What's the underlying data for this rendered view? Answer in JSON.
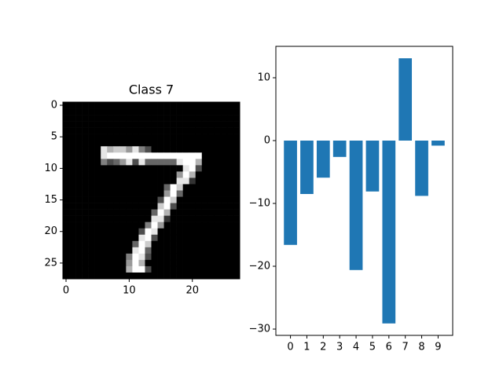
{
  "chart_data": [
    {
      "type": "image",
      "title": "Class 7",
      "cmap": "gray",
      "xlim": [
        -0.5,
        27.5
      ],
      "ylim": [
        27.5,
        -0.5
      ],
      "xticks": [
        0,
        10,
        20
      ],
      "yticks": [
        0,
        5,
        10,
        15,
        20,
        25
      ],
      "values": [
        [
          0,
          0,
          0,
          0,
          0,
          0,
          0,
          0,
          0,
          0,
          0,
          0,
          0,
          0,
          0,
          0,
          0,
          0,
          0,
          0,
          0,
          0,
          0,
          0,
          0,
          0,
          0,
          0
        ],
        [
          0,
          0,
          0,
          0,
          0,
          0,
          0,
          0,
          0,
          0,
          0,
          0,
          0,
          0,
          0,
          0,
          0,
          0,
          0,
          0,
          0,
          0,
          0,
          0,
          0,
          0,
          0,
          0
        ],
        [
          0,
          0,
          0,
          0,
          0,
          0,
          0,
          0,
          0,
          0,
          0,
          0,
          0,
          0,
          0,
          0,
          0,
          0,
          0,
          0,
          0,
          0,
          0,
          0,
          0,
          0,
          0,
          0
        ],
        [
          0,
          0,
          0,
          0,
          0,
          0,
          0,
          0,
          0,
          0,
          0,
          0,
          0,
          0,
          0,
          0,
          0,
          0,
          0,
          0,
          0,
          0,
          0,
          0,
          0,
          0,
          0,
          0
        ],
        [
          0,
          0,
          0,
          0,
          0,
          0,
          0,
          0,
          0,
          0,
          0,
          0,
          0,
          0,
          0,
          0,
          0,
          0,
          0,
          0,
          0,
          0,
          0,
          0,
          0,
          0,
          0,
          0
        ],
        [
          0,
          0,
          0,
          0,
          0,
          0,
          0,
          0,
          0,
          0,
          0,
          0,
          0,
          0,
          0,
          0,
          0,
          0,
          0,
          0,
          0,
          0,
          0,
          0,
          0,
          0,
          0,
          0
        ],
        [
          0,
          0,
          0,
          0,
          0,
          0,
          0,
          0,
          0,
          0,
          0,
          0,
          0,
          0,
          0,
          0,
          0,
          0,
          0,
          0,
          0,
          0,
          0,
          0,
          0,
          0,
          0,
          0
        ],
        [
          0,
          0,
          0,
          0,
          0,
          0,
          0.9,
          0.7,
          0.8,
          0.8,
          0.6,
          0.9,
          0.5,
          0.3,
          0,
          0,
          0,
          0,
          0,
          0,
          0,
          0,
          0,
          0,
          0,
          0,
          0,
          0
        ],
        [
          0,
          0,
          0,
          0,
          0,
          0,
          0.9,
          1,
          1,
          1,
          1,
          1,
          1,
          1,
          1,
          1,
          1,
          1,
          1,
          1,
          1,
          1,
          0,
          0,
          0,
          0,
          0,
          0
        ],
        [
          0,
          0,
          0,
          0,
          0,
          0,
          0.5,
          0.3,
          0.4,
          0.6,
          0.9,
          0.3,
          0.9,
          0.4,
          0.4,
          0.4,
          0.4,
          0.4,
          0.9,
          1,
          1,
          0.7,
          0,
          0,
          0,
          0,
          0,
          0
        ],
        [
          0,
          0,
          0,
          0,
          0,
          0,
          0,
          0,
          0,
          0,
          0,
          0,
          0,
          0,
          0,
          0,
          0,
          0,
          0,
          0.9,
          1,
          0.3,
          0,
          0,
          0,
          0,
          0,
          0
        ],
        [
          0,
          0,
          0,
          0,
          0,
          0,
          0,
          0,
          0,
          0,
          0,
          0,
          0,
          0,
          0,
          0,
          0,
          0,
          0.6,
          1,
          0.7,
          0,
          0,
          0,
          0,
          0,
          0,
          0
        ],
        [
          0,
          0,
          0,
          0,
          0,
          0,
          0,
          0,
          0,
          0,
          0,
          0,
          0,
          0,
          0,
          0,
          0,
          0,
          0.9,
          0.9,
          0.2,
          0,
          0,
          0,
          0,
          0,
          0,
          0
        ],
        [
          0,
          0,
          0,
          0,
          0,
          0,
          0,
          0,
          0,
          0,
          0,
          0,
          0,
          0,
          0,
          0,
          0.4,
          1,
          0.8,
          0,
          0,
          0,
          0,
          0,
          0,
          0,
          0,
          0
        ],
        [
          0,
          0,
          0,
          0,
          0,
          0,
          0,
          0,
          0,
          0,
          0,
          0,
          0,
          0,
          0,
          0,
          0.6,
          1,
          0.4,
          0,
          0,
          0,
          0,
          0,
          0,
          0,
          0,
          0
        ],
        [
          0,
          0,
          0,
          0,
          0,
          0,
          0,
          0,
          0,
          0,
          0,
          0,
          0,
          0,
          0,
          0.3,
          1,
          0.8,
          0,
          0,
          0,
          0,
          0,
          0,
          0,
          0,
          0,
          0
        ],
        [
          0,
          0,
          0,
          0,
          0,
          0,
          0,
          0,
          0,
          0,
          0,
          0,
          0,
          0,
          0,
          0.8,
          1,
          0.3,
          0,
          0,
          0,
          0,
          0,
          0,
          0,
          0,
          0,
          0
        ],
        [
          0,
          0,
          0,
          0,
          0,
          0,
          0,
          0,
          0,
          0,
          0,
          0,
          0,
          0,
          0.4,
          1,
          0.7,
          0,
          0,
          0,
          0,
          0,
          0,
          0,
          0,
          0,
          0,
          0
        ],
        [
          0,
          0,
          0,
          0,
          0,
          0,
          0,
          0,
          0,
          0,
          0,
          0,
          0,
          0,
          0.9,
          0.9,
          0.2,
          0,
          0,
          0,
          0,
          0,
          0,
          0,
          0,
          0,
          0,
          0
        ],
        [
          0,
          0,
          0,
          0,
          0,
          0,
          0,
          0,
          0,
          0,
          0,
          0,
          0,
          0.5,
          1,
          0.6,
          0,
          0,
          0,
          0,
          0,
          0,
          0,
          0,
          0,
          0,
          0,
          0
        ],
        [
          0,
          0,
          0,
          0,
          0,
          0,
          0,
          0,
          0,
          0,
          0,
          0,
          0.3,
          1,
          0.9,
          0,
          0,
          0,
          0,
          0,
          0,
          0,
          0,
          0,
          0,
          0,
          0,
          0
        ],
        [
          0,
          0,
          0,
          0,
          0,
          0,
          0,
          0,
          0,
          0,
          0,
          0,
          0.9,
          1,
          0.3,
          0,
          0,
          0,
          0,
          0,
          0,
          0,
          0,
          0,
          0,
          0,
          0,
          0
        ],
        [
          0,
          0,
          0,
          0,
          0,
          0,
          0,
          0,
          0,
          0,
          0,
          0.4,
          1,
          0.8,
          0,
          0,
          0,
          0,
          0,
          0,
          0,
          0,
          0,
          0,
          0,
          0,
          0,
          0
        ],
        [
          0,
          0,
          0,
          0,
          0,
          0,
          0,
          0,
          0,
          0,
          0,
          0.9,
          1,
          0.4,
          0,
          0,
          0,
          0,
          0,
          0,
          0,
          0,
          0,
          0,
          0,
          0,
          0,
          0
        ],
        [
          0,
          0,
          0,
          0,
          0,
          0,
          0,
          0,
          0,
          0,
          0.5,
          1,
          0.9,
          0.3,
          0,
          0,
          0,
          0,
          0,
          0,
          0,
          0,
          0,
          0,
          0,
          0,
          0,
          0
        ],
        [
          0,
          0,
          0,
          0,
          0,
          0,
          0,
          0,
          0,
          0,
          0.6,
          1,
          0.7,
          0,
          0,
          0,
          0,
          0,
          0,
          0,
          0,
          0,
          0,
          0,
          0,
          0,
          0,
          0
        ],
        [
          0,
          0,
          0,
          0,
          0,
          0,
          0,
          0,
          0,
          0,
          0.7,
          1,
          1,
          0.3,
          0,
          0,
          0,
          0,
          0,
          0,
          0,
          0,
          0,
          0,
          0,
          0,
          0,
          0
        ],
        [
          0,
          0,
          0,
          0,
          0,
          0,
          0,
          0,
          0,
          0,
          0,
          0,
          0,
          0,
          0,
          0,
          0,
          0,
          0,
          0,
          0,
          0,
          0,
          0,
          0,
          0,
          0,
          0
        ]
      ]
    },
    {
      "type": "bar",
      "color": "#1f77b4",
      "categories": [
        "0",
        "1",
        "2",
        "3",
        "4",
        "5",
        "6",
        "7",
        "8",
        "9"
      ],
      "values": [
        -16.6,
        -8.5,
        -5.9,
        -2.6,
        -20.6,
        -8.1,
        -29.1,
        13.1,
        -8.8,
        -0.8
      ],
      "ylim": [
        -31,
        15
      ],
      "yticks": [
        {
          "value": -30,
          "label": "−30"
        },
        {
          "value": -20,
          "label": "−20"
        },
        {
          "value": -10,
          "label": "−10"
        },
        0,
        10
      ]
    }
  ]
}
